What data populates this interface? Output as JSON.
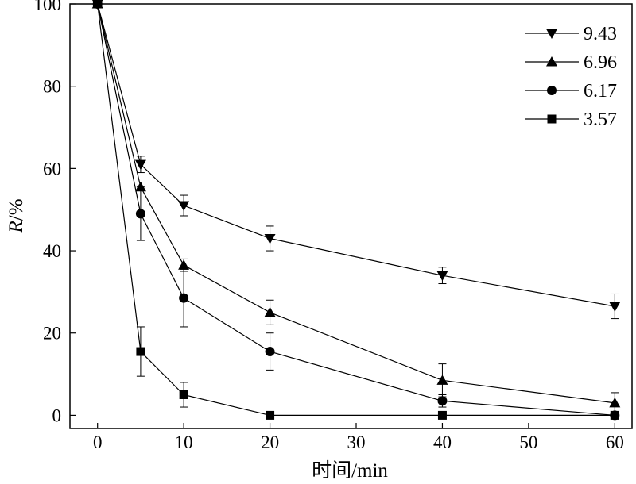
{
  "chart_data": {
    "type": "line",
    "xlabel": "时间/min",
    "ylabel_italic": "R",
    "ylabel_rest": "/%",
    "xlim": [
      -3.2,
      62
    ],
    "ylim": [
      -3.2,
      100
    ],
    "xticks": [
      0,
      10,
      20,
      30,
      40,
      50,
      60
    ],
    "yticks": [
      0,
      20,
      40,
      60,
      80,
      100
    ],
    "legend_position": "top-right",
    "grid": false,
    "x": [
      0,
      5,
      10,
      20,
      40,
      60
    ],
    "series": [
      {
        "name": "9.43",
        "marker": "triangle-down",
        "values": [
          100,
          61,
          51,
          43,
          34,
          26.5
        ],
        "errors": [
          0,
          2,
          2.5,
          3,
          2,
          3
        ]
      },
      {
        "name": "6.96",
        "marker": "triangle-up",
        "values": [
          100,
          55.5,
          36.5,
          25,
          8.5,
          3
        ],
        "errors": [
          0,
          0,
          1.5,
          3,
          4,
          2.5
        ]
      },
      {
        "name": "6.17",
        "marker": "circle",
        "values": [
          100,
          49,
          28.5,
          15.5,
          3.5,
          0
        ],
        "errors": [
          0,
          6.5,
          7,
          4.5,
          1.5,
          0
        ]
      },
      {
        "name": "3.57",
        "marker": "square",
        "values": [
          100,
          15.5,
          5,
          0,
          0,
          0
        ],
        "errors": [
          0,
          6,
          3,
          0,
          0,
          0
        ]
      }
    ]
  }
}
